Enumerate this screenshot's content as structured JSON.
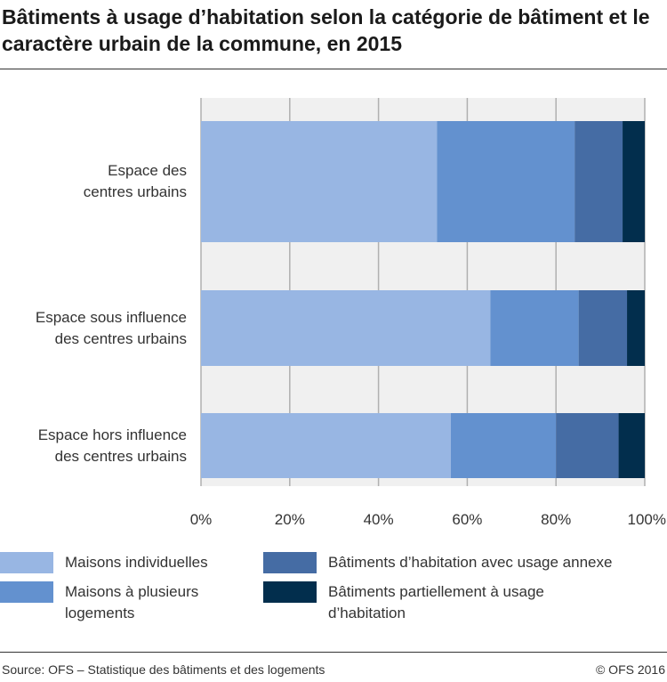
{
  "title": "Bâtiments à usage d’habitation selon la catégorie de bâtiment et le caractère urbain de la commune, en 2015",
  "chart_data": {
    "type": "bar",
    "orientation": "horizontal",
    "stacked": true,
    "categories": [
      "Espace des centres urbains",
      "Espace sous influence des centres urbains",
      "Espace hors influence des centres urbains"
    ],
    "category_lines": [
      [
        "Espace des",
        "centres urbains"
      ],
      [
        "Espace sous influence",
        "des centres urbains"
      ],
      [
        "Espace hors influence",
        "des centres urbains"
      ]
    ],
    "series": [
      {
        "name": "Maisons individuelles",
        "color": "#98b6e3",
        "values": [
          53.2,
          65.2,
          56.3
        ]
      },
      {
        "name": "Maisons à plusieurs logements",
        "color": "#6391cf",
        "values": [
          31.0,
          19.9,
          23.7
        ]
      },
      {
        "name": "Bâtiments d’habitation avec usage annexe",
        "color": "#456ca4",
        "values": [
          10.8,
          10.9,
          14.1
        ]
      },
      {
        "name": "Bâtiments partiellement à usage d’habitation",
        "color": "#022e4d",
        "values": [
          5.0,
          4.0,
          5.9
        ]
      }
    ],
    "legend_lines": [
      [
        "Maisons individuelles"
      ],
      [
        "Maisons à plusieurs",
        "logements"
      ],
      [
        "Bâtiments d’habitation avec usage annexe"
      ],
      [
        "Bâtiments partiellement à usage",
        "d’habitation"
      ]
    ],
    "xlim": [
      0,
      100
    ],
    "xticks": [
      "0%",
      "20%",
      "40%",
      "60%",
      "80%",
      "100%"
    ],
    "grid": true,
    "legend": "bottom",
    "xlabel": "",
    "ylabel": ""
  },
  "footer": {
    "source": "Source: OFS – Statistique des bâtiments et des logements",
    "copyright": "© OFS 2016"
  }
}
